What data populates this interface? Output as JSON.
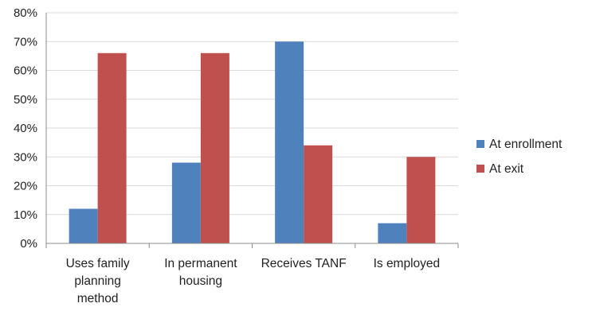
{
  "chart_data": {
    "type": "bar",
    "title": "",
    "xlabel": "",
    "ylabel": "",
    "categories": [
      [
        "Uses family",
        "planning",
        "method"
      ],
      [
        "In permanent",
        "housing"
      ],
      [
        "Receives TANF"
      ],
      [
        "Is employed"
      ]
    ],
    "series": [
      {
        "name": "At enrollment",
        "color": "#4F81BD",
        "values": [
          12,
          28,
          70,
          7
        ]
      },
      {
        "name": "At exit",
        "color": "#C0504D",
        "values": [
          66,
          66,
          34,
          30
        ]
      }
    ],
    "ylim": [
      0,
      80
    ],
    "ytick_step": 10,
    "ytick_format": "percent",
    "grid": true,
    "legend_position": "right",
    "gridline_color": "#D9D9D9",
    "axis_color": "#8C8C8C"
  }
}
